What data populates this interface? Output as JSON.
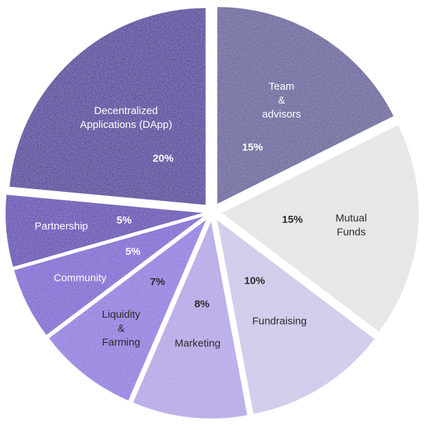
{
  "chart_data": {
    "type": "pie",
    "title": "",
    "slices": [
      {
        "label": "Team\n&\nadvisors",
        "value": 15,
        "value_label": "15%",
        "color": "#5f5b9a",
        "text_color": "#ffffff",
        "pct_color": "#ffffff"
      },
      {
        "label": "Mutual\nFunds",
        "value": 15,
        "value_label": "15%",
        "color": "#e4e4e4",
        "text_color": "#2a2a2a",
        "pct_color": "#2a2a2a"
      },
      {
        "label": "Fundraising",
        "value": 10,
        "value_label": "10%",
        "color": "#cdc6ea",
        "text_color": "#2a2a2a",
        "pct_color": "#2a2a2a"
      },
      {
        "label": "Marketing",
        "value": 8,
        "value_label": "8%",
        "color": "#b3a4e6",
        "text_color": "#2a2a2a",
        "pct_color": "#2a2a2a"
      },
      {
        "label": "Liquidity\n&\nFarming",
        "value": 7,
        "value_label": "7%",
        "color": "#8f78df",
        "text_color": "#2a2a2a",
        "pct_color": "#2a2a2a"
      },
      {
        "label": "Community",
        "value": 5,
        "value_label": "5%",
        "color": "#7a5fd2",
        "text_color": "#ffffff",
        "pct_color": "#ffffff"
      },
      {
        "label": "Partnership",
        "value": 5,
        "value_label": "5%",
        "color": "#5b3db3",
        "text_color": "#ffffff",
        "pct_color": "#ffffff"
      },
      {
        "label": "Decentralized\nApplications (DApp)",
        "value": 20,
        "value_label": "20%",
        "color": "#4a2d9a",
        "text_color": "#ffffff",
        "pct_color": "#ffffff"
      }
    ]
  }
}
